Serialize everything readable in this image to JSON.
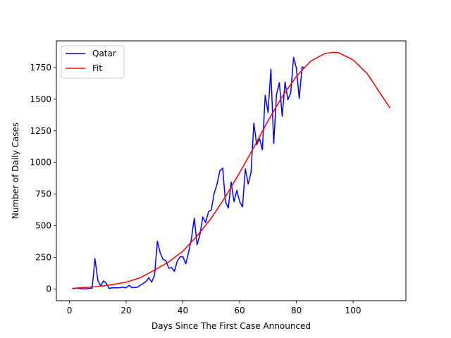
{
  "chart_data": {
    "type": "line",
    "title": "",
    "xlabel": "Days Since The First Case Announced",
    "ylabel": "Number of Daily Cases",
    "xlim": [
      -4.6,
      118.6
    ],
    "ylim": [
      -91.5,
      1960.5
    ],
    "xticks": [
      0,
      20,
      40,
      60,
      80,
      100
    ],
    "yticks": [
      0,
      250,
      500,
      750,
      1000,
      1250,
      1500,
      1750
    ],
    "legend_position": "upper left",
    "grid": false,
    "series": [
      {
        "name": "Qatar",
        "color": "#0000ff",
        "x": [
          1,
          2,
          3,
          4,
          5,
          6,
          7,
          8,
          9,
          10,
          11,
          12,
          13,
          14,
          15,
          16,
          17,
          18,
          19,
          20,
          21,
          22,
          23,
          24,
          25,
          26,
          27,
          28,
          29,
          30,
          31,
          32,
          33,
          34,
          35,
          36,
          37,
          38,
          39,
          40,
          41,
          42,
          43,
          44,
          45,
          46,
          47,
          48,
          49,
          50,
          51,
          52,
          53,
          54,
          55,
          56,
          57,
          58,
          59,
          60,
          61,
          62,
          63,
          64,
          65,
          66,
          67,
          68,
          69,
          70,
          71,
          72,
          73,
          74,
          75,
          76,
          77,
          78,
          79,
          80,
          81,
          82,
          83
        ],
        "y": [
          2,
          6,
          7,
          4,
          2,
          3,
          5,
          8,
          240,
          70,
          25,
          65,
          45,
          5,
          10,
          10,
          10,
          12,
          15,
          10,
          30,
          12,
          12,
          15,
          30,
          45,
          60,
          90,
          55,
          110,
          378,
          285,
          235,
          225,
          165,
          170,
          140,
          220,
          255,
          255,
          200,
          290,
          400,
          560,
          350,
          430,
          570,
          525,
          610,
          625,
          755,
          825,
          935,
          955,
          690,
          640,
          845,
          690,
          780,
          690,
          650,
          950,
          830,
          920,
          1310,
          1140,
          1190,
          1100,
          1530,
          1395,
          1735,
          1150,
          1540,
          1630,
          1365,
          1635,
          1495,
          1550,
          1830,
          1745,
          1505,
          1755,
          1745
        ]
      },
      {
        "name": "Fit",
        "color": "#ff0000",
        "x": [
          1,
          5,
          10,
          15,
          20,
          25,
          30,
          35,
          40,
          45,
          50,
          55,
          60,
          65,
          70,
          75,
          80,
          85,
          90,
          93,
          95,
          100,
          105,
          110,
          113
        ],
        "y": [
          6,
          12,
          20,
          35,
          55,
          90,
          150,
          215,
          300,
          420,
          560,
          730,
          920,
          1120,
          1330,
          1520,
          1680,
          1800,
          1860,
          1870,
          1865,
          1810,
          1700,
          1530,
          1430
        ]
      }
    ]
  }
}
